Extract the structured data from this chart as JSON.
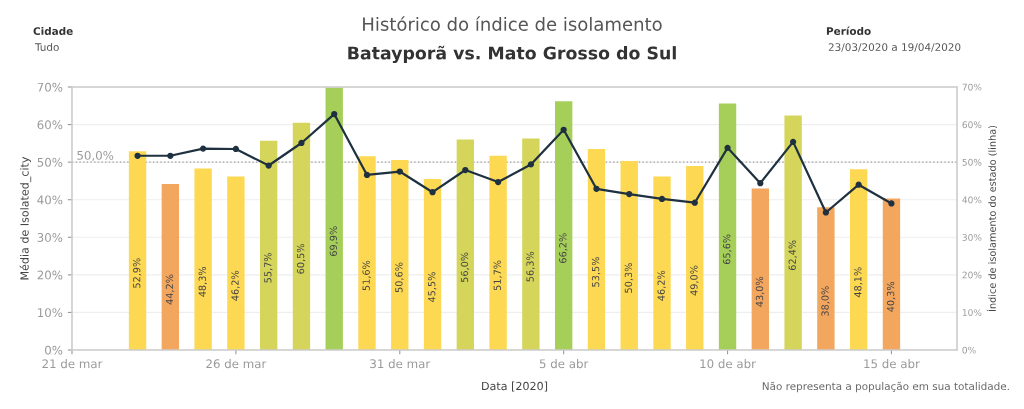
{
  "chart_data": {
    "type": "bar",
    "title": "Histórico do índice de isolamento",
    "subtitle": "Batayporã vs. Mato Grosso do Sul",
    "xlabel": "Data [2020]",
    "ylabel": "Média de Isolated_city",
    "y2label": "Índice de isolamento do estado (linha)",
    "annotations": [
      "Cidade",
      "Tudo",
      "Período",
      "23/03/2020 a 19/04/2020",
      "Não representa a população em sua totalidade."
    ],
    "x": [
      "2020-03-23",
      "2020-03-24",
      "2020-03-25",
      "2020-03-26",
      "2020-03-27",
      "2020-03-28",
      "2020-03-29",
      "2020-03-30",
      "2020-03-31",
      "2020-04-01",
      "2020-04-02",
      "2020-04-03",
      "2020-04-04",
      "2020-04-05",
      "2020-04-06",
      "2020-04-07",
      "2020-04-08",
      "2020-04-09",
      "2020-04-10",
      "2020-04-11",
      "2020-04-12",
      "2020-04-13",
      "2020-04-14",
      "2020-04-15"
    ],
    "series": [
      {
        "values": [
          52.9,
          44.2,
          48.3,
          46.2,
          55.7,
          60.5,
          69.9,
          51.6,
          50.6,
          45.5,
          56.0,
          51.7,
          56.3,
          66.2,
          53.5,
          50.3,
          46.2,
          49.0,
          65.6,
          43.0,
          62.4,
          38.0,
          48.1,
          40.3
        ],
        "colors": [
          "#fdd853",
          "#f3a65e",
          "#fdd853",
          "#fdd853",
          "#d4d55a",
          "#d4d55a",
          "#a6cf5a",
          "#fdd853",
          "#fdd853",
          "#fdd853",
          "#d4d55a",
          "#fdd853",
          "#d4d55a",
          "#a6cf5a",
          "#fdd853",
          "#fdd853",
          "#fdd853",
          "#fdd853",
          "#a6cf5a",
          "#f3a65e",
          "#d4d55a",
          "#f3a65e",
          "#fdd853",
          "#f3a65e"
        ],
        "value_labels": [
          "52,9%",
          "44,2%",
          "48,3%",
          "46,2%",
          "55,7%",
          "60,5%",
          "69,9%",
          "51,6%",
          "50,6%",
          "45,5%",
          "56,0%",
          "51,7%",
          "56,3%",
          "66,2%",
          "53,5%",
          "50,3%",
          "46,2%",
          "49,0%",
          "65,6%",
          "43,0%",
          "62,4%",
          "38,0%",
          "48,1%",
          "40,3%"
        ]
      },
      {
        "type": "line",
        "axis": "y2",
        "color": "#1f3140",
        "marker": "circle",
        "line_style": "solid",
        "values": [
          51.7,
          51.7,
          53.6,
          53.5,
          49.1,
          55.1,
          62.8,
          46.6,
          47.5,
          42.0,
          47.9,
          44.7,
          49.4,
          58.6,
          42.9,
          41.5,
          40.2,
          39.2,
          53.8,
          44.4,
          55.4,
          36.6,
          44.0,
          39.0
        ]
      }
    ],
    "xlim": [
      "2020-03-21",
      "2020-04-17"
    ],
    "xticks": [
      {
        "value": "2020-03-21",
        "label": "21 de mar"
      },
      {
        "value": "2020-03-26",
        "label": "26 de mar"
      },
      {
        "value": "2020-03-31",
        "label": "31 de mar"
      },
      {
        "value": "2020-04-05",
        "label": "5 de abr"
      },
      {
        "value": "2020-04-10",
        "label": "10 de abr"
      },
      {
        "value": "2020-04-15",
        "label": "15 de abr"
      }
    ],
    "ylim": [
      0,
      70
    ],
    "yticks": [
      {
        "value": 0,
        "label": "0%"
      },
      {
        "value": 10,
        "label": "10%"
      },
      {
        "value": 20,
        "label": "20%"
      },
      {
        "value": 30,
        "label": "30%"
      },
      {
        "value": 40,
        "label": "40%"
      },
      {
        "value": 50,
        "label": "50%"
      },
      {
        "value": 60,
        "label": "60%"
      },
      {
        "value": 70,
        "label": "70%"
      }
    ],
    "y2lim": [
      0,
      70
    ],
    "y2ticks": [
      {
        "value": 0,
        "label": "0%"
      },
      {
        "value": 10,
        "label": "10%"
      },
      {
        "value": 20,
        "label": "20%"
      },
      {
        "value": 30,
        "label": "30%"
      },
      {
        "value": 40,
        "label": "40%"
      },
      {
        "value": 50,
        "label": "50%"
      },
      {
        "value": 60,
        "label": "60%"
      },
      {
        "value": 70,
        "label": "70%"
      }
    ],
    "ref_lines": [
      {
        "axis": "y",
        "value": 50,
        "label": "50,0%",
        "color": "#a0a0a0",
        "line_style": "dotted"
      }
    ],
    "grid": "y"
  }
}
